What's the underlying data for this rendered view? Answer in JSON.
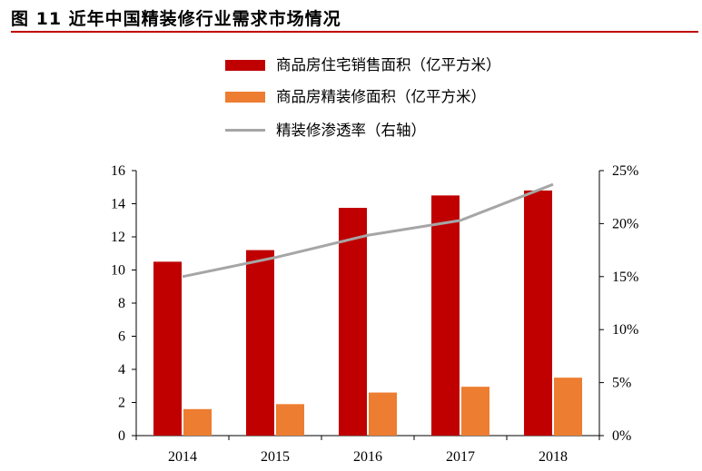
{
  "header": {
    "title": "图 11 近年中国精装修行业需求市场情况"
  },
  "colors": {
    "bar_primary": "#c00000",
    "bar_secondary": "#ed7d31",
    "line": "#a6a6a6",
    "accent_rule": "#c00000"
  },
  "chart_data": {
    "type": "bar",
    "categories": [
      "2014",
      "2015",
      "2016",
      "2017",
      "2018"
    ],
    "series": [
      {
        "name": "商品房住宅销售面积（亿平方米）",
        "type": "bar",
        "axis": "left",
        "values": [
          10.5,
          11.2,
          13.75,
          14.5,
          14.8
        ]
      },
      {
        "name": "商品房精装修面积（亿平方米）",
        "type": "bar",
        "axis": "left",
        "values": [
          1.6,
          1.9,
          2.6,
          2.95,
          3.5
        ]
      },
      {
        "name": "精装修渗透率（右轴）",
        "type": "line",
        "axis": "right",
        "values": [
          15.0,
          16.8,
          18.9,
          20.3,
          23.7
        ]
      }
    ],
    "y_left": {
      "min": 0,
      "max": 16,
      "ticks": [
        "0",
        "2",
        "4",
        "6",
        "8",
        "10",
        "12",
        "14",
        "16"
      ]
    },
    "y_right": {
      "min": 0,
      "max": 25,
      "ticks": [
        "0%",
        "5%",
        "10%",
        "15%",
        "20%",
        "25%"
      ]
    },
    "grid": false,
    "legend": "top"
  }
}
